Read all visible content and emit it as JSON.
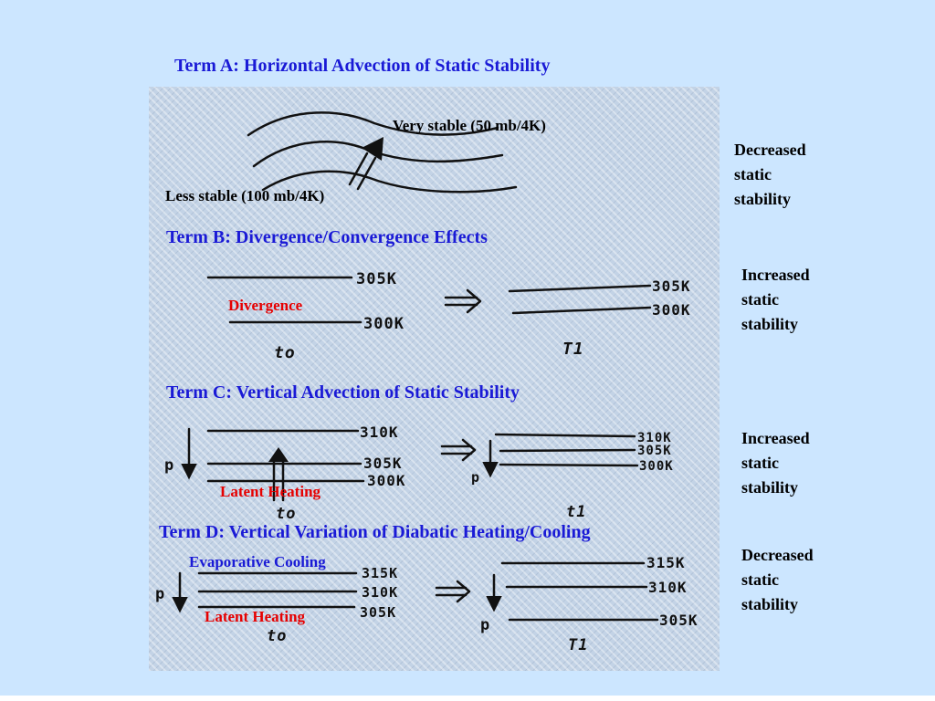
{
  "colors": {
    "background": "#cce6ff",
    "title": "#1a1ad6",
    "red_label": "#e60000"
  },
  "term_a": {
    "title": "Term A: Horizontal Advection of Static Stability",
    "very_stable": "Very stable (50 mb/4K)",
    "less_stable": "Less stable (100 mb/4K)",
    "effect": [
      "Decreased",
      "static",
      "stability"
    ]
  },
  "term_b": {
    "title": "Term B: Divergence/Convergence Effects",
    "label": "Divergence",
    "t0": "to",
    "t1": "T1",
    "left_isentropes": [
      "305K",
      "300K"
    ],
    "right_isentropes": [
      "305K",
      "300K"
    ],
    "effect": [
      "Increased",
      "static",
      "stability"
    ]
  },
  "term_c": {
    "title": "Term C: Vertical Advection of Static Stability",
    "label": "Latent Heating",
    "p": "p",
    "t0": "to",
    "t1": "t1",
    "left_isentropes": [
      "310K",
      "305K",
      "300K"
    ],
    "right_isentropes": [
      "310K",
      "305K",
      "300K"
    ],
    "effect": [
      "Increased",
      "static",
      "stability"
    ]
  },
  "term_d": {
    "title": "Term D: Vertical Variation of Diabatic Heating/Cooling",
    "cooling_label": "Evaporative Cooling",
    "heating_label": "Latent Heating",
    "p": "p",
    "t0": "to",
    "t1": "T1",
    "left_isentropes": [
      "315K",
      "310K",
      "305K"
    ],
    "right_isentropes": [
      "315K",
      "310K",
      "305K"
    ],
    "effect": [
      "Decreased",
      "static",
      "stability"
    ]
  }
}
